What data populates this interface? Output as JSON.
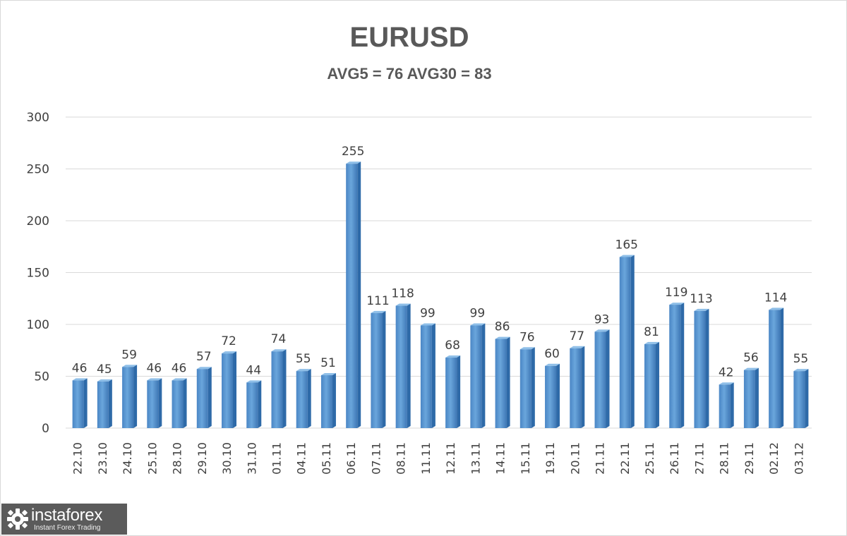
{
  "chart_data": {
    "type": "bar",
    "title": "EURUSD",
    "subtitle": "AVG5 = 76 AVG30 = 83",
    "xlabel": "",
    "ylabel": "",
    "ylim": [
      0,
      300
    ],
    "yticks": [
      0,
      50,
      100,
      150,
      200,
      250,
      300
    ],
    "grid": true,
    "legend": "none",
    "bar_color": "#5b9bd5",
    "categories": [
      "22.10",
      "23.10",
      "24.10",
      "25.10",
      "28.10",
      "29.10",
      "30.10",
      "31.10",
      "01.11",
      "04.11",
      "05.11",
      "06.11",
      "07.11",
      "08.11",
      "11.11",
      "12.11",
      "13.11",
      "14.11",
      "15.11",
      "19.11",
      "20.11",
      "21.11",
      "22.11",
      "25.11",
      "26.11",
      "27.11",
      "28.11",
      "29.11",
      "02.12",
      "03.12"
    ],
    "values": [
      46,
      45,
      59,
      46,
      46,
      57,
      72,
      44,
      74,
      55,
      51,
      255,
      111,
      118,
      99,
      68,
      99,
      86,
      76,
      60,
      77,
      93,
      165,
      81,
      119,
      113,
      42,
      56,
      114,
      55
    ]
  },
  "branding": {
    "logo_name": "instaforex",
    "logo_tagline": "Instant Forex Trading",
    "logo_icon": "gear-logo-icon",
    "logo_bg": "#5b5b5b"
  }
}
